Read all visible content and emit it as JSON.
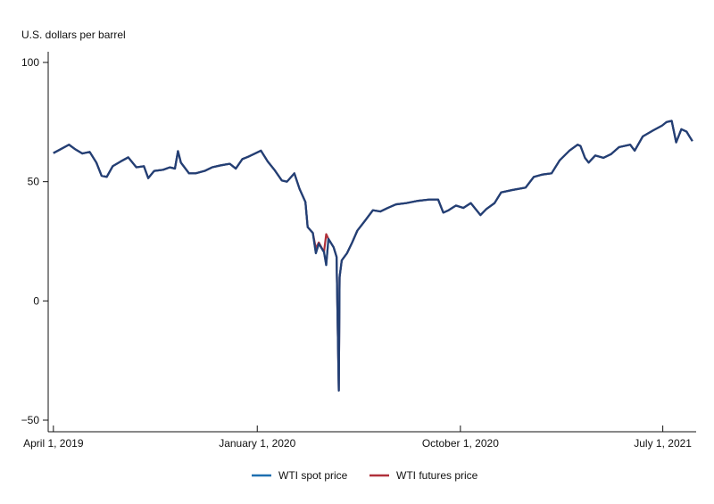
{
  "chart_data": {
    "type": "line",
    "title": "",
    "ylabel": "U.S. dollars per barrel",
    "xlabel": "",
    "ylim": [
      -50,
      100
    ],
    "yticks": [
      {
        "value": 100,
        "label": "100"
      },
      {
        "value": 50,
        "label": "50"
      },
      {
        "value": 0,
        "label": "0"
      },
      {
        "value": -50,
        "label": "−50"
      }
    ],
    "xticks": [
      {
        "date": "2019-04-01",
        "label": "April 1, 2019"
      },
      {
        "date": "2020-01-01",
        "label": "January 1, 2020"
      },
      {
        "date": "2020-10-01",
        "label": "October 1, 2020"
      },
      {
        "date": "2021-07-01",
        "label": "July 1, 2021"
      }
    ],
    "xlim": [
      "2019-03-25",
      "2021-08-15"
    ],
    "grid": false,
    "legend": "bottom-center",
    "series": [
      {
        "name": "WTI spot price",
        "color": "#1d6fb0",
        "points": [
          [
            "2019-04-01",
            62
          ],
          [
            "2019-04-10",
            63.5
          ],
          [
            "2019-04-22",
            65.5
          ],
          [
            "2019-05-01",
            63.5
          ],
          [
            "2019-05-10",
            61.8
          ],
          [
            "2019-05-20",
            62.5
          ],
          [
            "2019-05-29",
            58
          ],
          [
            "2019-06-05",
            52.5
          ],
          [
            "2019-06-12",
            52
          ],
          [
            "2019-06-20",
            56.5
          ],
          [
            "2019-07-01",
            58.5
          ],
          [
            "2019-07-11",
            60.2
          ],
          [
            "2019-07-22",
            56
          ],
          [
            "2019-08-01",
            56.5
          ],
          [
            "2019-08-07",
            51.5
          ],
          [
            "2019-08-15",
            54.5
          ],
          [
            "2019-08-27",
            55
          ],
          [
            "2019-09-05",
            56
          ],
          [
            "2019-09-12",
            55.5
          ],
          [
            "2019-09-16",
            62.8
          ],
          [
            "2019-09-20",
            58
          ],
          [
            "2019-10-01",
            53.5
          ],
          [
            "2019-10-10",
            53.5
          ],
          [
            "2019-10-22",
            54.5
          ],
          [
            "2019-11-01",
            56
          ],
          [
            "2019-11-12",
            56.8
          ],
          [
            "2019-11-25",
            57.5
          ],
          [
            "2019-12-03",
            55.5
          ],
          [
            "2019-12-12",
            59.5
          ],
          [
            "2019-12-20",
            60.5
          ],
          [
            "2020-01-06",
            63
          ],
          [
            "2020-01-15",
            58.5
          ],
          [
            "2020-01-24",
            55
          ],
          [
            "2020-02-03",
            50.5
          ],
          [
            "2020-02-10",
            50
          ],
          [
            "2020-02-20",
            53.5
          ],
          [
            "2020-02-27",
            47
          ],
          [
            "2020-03-06",
            41.5
          ],
          [
            "2020-03-09",
            31
          ],
          [
            "2020-03-16",
            28.5
          ],
          [
            "2020-03-20",
            20
          ],
          [
            "2020-03-24",
            24
          ],
          [
            "2020-03-31",
            20.5
          ],
          [
            "2020-04-03",
            15
          ],
          [
            "2020-04-06",
            26
          ],
          [
            "2020-04-13",
            22.5
          ],
          [
            "2020-04-17",
            18.5
          ],
          [
            "2020-04-20",
            -37.6
          ],
          [
            "2020-04-21",
            10
          ],
          [
            "2020-04-24",
            17
          ],
          [
            "2020-05-01",
            20
          ],
          [
            "2020-05-08",
            24.5
          ],
          [
            "2020-05-15",
            29.5
          ],
          [
            "2020-05-25",
            33.5
          ],
          [
            "2020-06-05",
            38
          ],
          [
            "2020-06-15",
            37.5
          ],
          [
            "2020-06-25",
            39
          ],
          [
            "2020-07-06",
            40.5
          ],
          [
            "2020-07-20",
            41
          ],
          [
            "2020-08-05",
            42
          ],
          [
            "2020-08-20",
            42.5
          ],
          [
            "2020-09-01",
            42.5
          ],
          [
            "2020-09-08",
            37
          ],
          [
            "2020-09-15",
            38
          ],
          [
            "2020-09-25",
            40
          ],
          [
            "2020-10-05",
            39
          ],
          [
            "2020-10-15",
            41
          ],
          [
            "2020-10-28",
            36
          ],
          [
            "2020-11-05",
            38.5
          ],
          [
            "2020-11-16",
            41
          ],
          [
            "2020-11-25",
            45.5
          ],
          [
            "2020-12-10",
            46.5
          ],
          [
            "2020-12-28",
            47.5
          ],
          [
            "2021-01-08",
            52
          ],
          [
            "2021-01-20",
            53
          ],
          [
            "2021-02-01",
            53.5
          ],
          [
            "2021-02-12",
            59
          ],
          [
            "2021-02-25",
            63
          ],
          [
            "2021-03-08",
            65.5
          ],
          [
            "2021-03-12",
            65
          ],
          [
            "2021-03-18",
            60
          ],
          [
            "2021-03-23",
            58
          ],
          [
            "2021-04-01",
            61
          ],
          [
            "2021-04-12",
            60
          ],
          [
            "2021-04-22",
            61.5
          ],
          [
            "2021-05-03",
            64.5
          ],
          [
            "2021-05-18",
            65.5
          ],
          [
            "2021-05-24",
            63
          ],
          [
            "2021-06-04",
            69
          ],
          [
            "2021-06-18",
            71.5
          ],
          [
            "2021-06-30",
            73.5
          ],
          [
            "2021-07-06",
            75
          ],
          [
            "2021-07-13",
            75.5
          ],
          [
            "2021-07-19",
            66.5
          ],
          [
            "2021-07-26",
            72
          ],
          [
            "2021-08-02",
            71
          ],
          [
            "2021-08-06",
            69
          ],
          [
            "2021-08-10",
            67
          ]
        ]
      },
      {
        "name": "WTI futures price",
        "color": "#b0303a",
        "points": [
          [
            "2019-04-01",
            62
          ],
          [
            "2019-04-10",
            63.5
          ],
          [
            "2019-04-22",
            65.5
          ],
          [
            "2019-05-01",
            63.5
          ],
          [
            "2019-05-10",
            61.8
          ],
          [
            "2019-05-20",
            62.5
          ],
          [
            "2019-05-29",
            58
          ],
          [
            "2019-06-05",
            52.5
          ],
          [
            "2019-06-12",
            52
          ],
          [
            "2019-06-20",
            56.5
          ],
          [
            "2019-07-01",
            58.5
          ],
          [
            "2019-07-11",
            60.2
          ],
          [
            "2019-07-22",
            56
          ],
          [
            "2019-08-01",
            56.5
          ],
          [
            "2019-08-07",
            51.5
          ],
          [
            "2019-08-15",
            54.5
          ],
          [
            "2019-08-27",
            55
          ],
          [
            "2019-09-05",
            56
          ],
          [
            "2019-09-12",
            55.5
          ],
          [
            "2019-09-16",
            62.8
          ],
          [
            "2019-09-20",
            58
          ],
          [
            "2019-10-01",
            53.5
          ],
          [
            "2019-10-10",
            53.5
          ],
          [
            "2019-10-22",
            54.5
          ],
          [
            "2019-11-01",
            56
          ],
          [
            "2019-11-12",
            56.8
          ],
          [
            "2019-11-25",
            57.5
          ],
          [
            "2019-12-03",
            55.5
          ],
          [
            "2019-12-12",
            59.5
          ],
          [
            "2019-12-20",
            60.5
          ],
          [
            "2020-01-06",
            63
          ],
          [
            "2020-01-15",
            58.5
          ],
          [
            "2020-01-24",
            55
          ],
          [
            "2020-02-03",
            50.5
          ],
          [
            "2020-02-10",
            50
          ],
          [
            "2020-02-20",
            53.5
          ],
          [
            "2020-02-27",
            47
          ],
          [
            "2020-03-06",
            41.5
          ],
          [
            "2020-03-09",
            31
          ],
          [
            "2020-03-16",
            28.5
          ],
          [
            "2020-03-20",
            22
          ],
          [
            "2020-03-24",
            24.5
          ],
          [
            "2020-03-31",
            20.5
          ],
          [
            "2020-04-03",
            28
          ],
          [
            "2020-04-06",
            26
          ],
          [
            "2020-04-13",
            22.5
          ],
          [
            "2020-04-17",
            18.5
          ],
          [
            "2020-04-20",
            -37.6
          ],
          [
            "2020-04-21",
            10
          ],
          [
            "2020-04-24",
            17
          ],
          [
            "2020-05-01",
            20
          ],
          [
            "2020-05-08",
            24.5
          ],
          [
            "2020-05-15",
            29.5
          ],
          [
            "2020-05-25",
            33.5
          ],
          [
            "2020-06-05",
            38
          ],
          [
            "2020-06-15",
            37.5
          ],
          [
            "2020-06-25",
            39
          ],
          [
            "2020-07-06",
            40.5
          ],
          [
            "2020-07-20",
            41
          ],
          [
            "2020-08-05",
            42
          ],
          [
            "2020-08-20",
            42.5
          ],
          [
            "2020-09-01",
            42.5
          ],
          [
            "2020-09-08",
            37
          ],
          [
            "2020-09-15",
            38
          ],
          [
            "2020-09-25",
            40
          ],
          [
            "2020-10-05",
            39
          ],
          [
            "2020-10-15",
            41
          ],
          [
            "2020-10-28",
            36
          ],
          [
            "2020-11-05",
            38.5
          ],
          [
            "2020-11-16",
            41
          ],
          [
            "2020-11-25",
            45.5
          ],
          [
            "2020-12-10",
            46.5
          ],
          [
            "2020-12-28",
            47.5
          ],
          [
            "2021-01-08",
            52
          ],
          [
            "2021-01-20",
            53
          ],
          [
            "2021-02-01",
            53.5
          ],
          [
            "2021-02-12",
            59
          ],
          [
            "2021-02-25",
            63
          ],
          [
            "2021-03-08",
            65.5
          ],
          [
            "2021-03-12",
            65
          ],
          [
            "2021-03-18",
            60
          ],
          [
            "2021-03-23",
            58
          ],
          [
            "2021-04-01",
            61
          ],
          [
            "2021-04-12",
            60
          ],
          [
            "2021-04-22",
            61.5
          ],
          [
            "2021-05-03",
            64.5
          ],
          [
            "2021-05-18",
            65.5
          ],
          [
            "2021-05-24",
            63
          ],
          [
            "2021-06-04",
            69
          ],
          [
            "2021-06-18",
            71.5
          ],
          [
            "2021-06-30",
            73.5
          ],
          [
            "2021-07-06",
            75
          ],
          [
            "2021-07-13",
            75.5
          ],
          [
            "2021-07-19",
            66.5
          ],
          [
            "2021-07-26",
            72
          ],
          [
            "2021-08-02",
            71
          ],
          [
            "2021-08-06",
            69
          ],
          [
            "2021-08-10",
            67
          ]
        ]
      }
    ]
  }
}
